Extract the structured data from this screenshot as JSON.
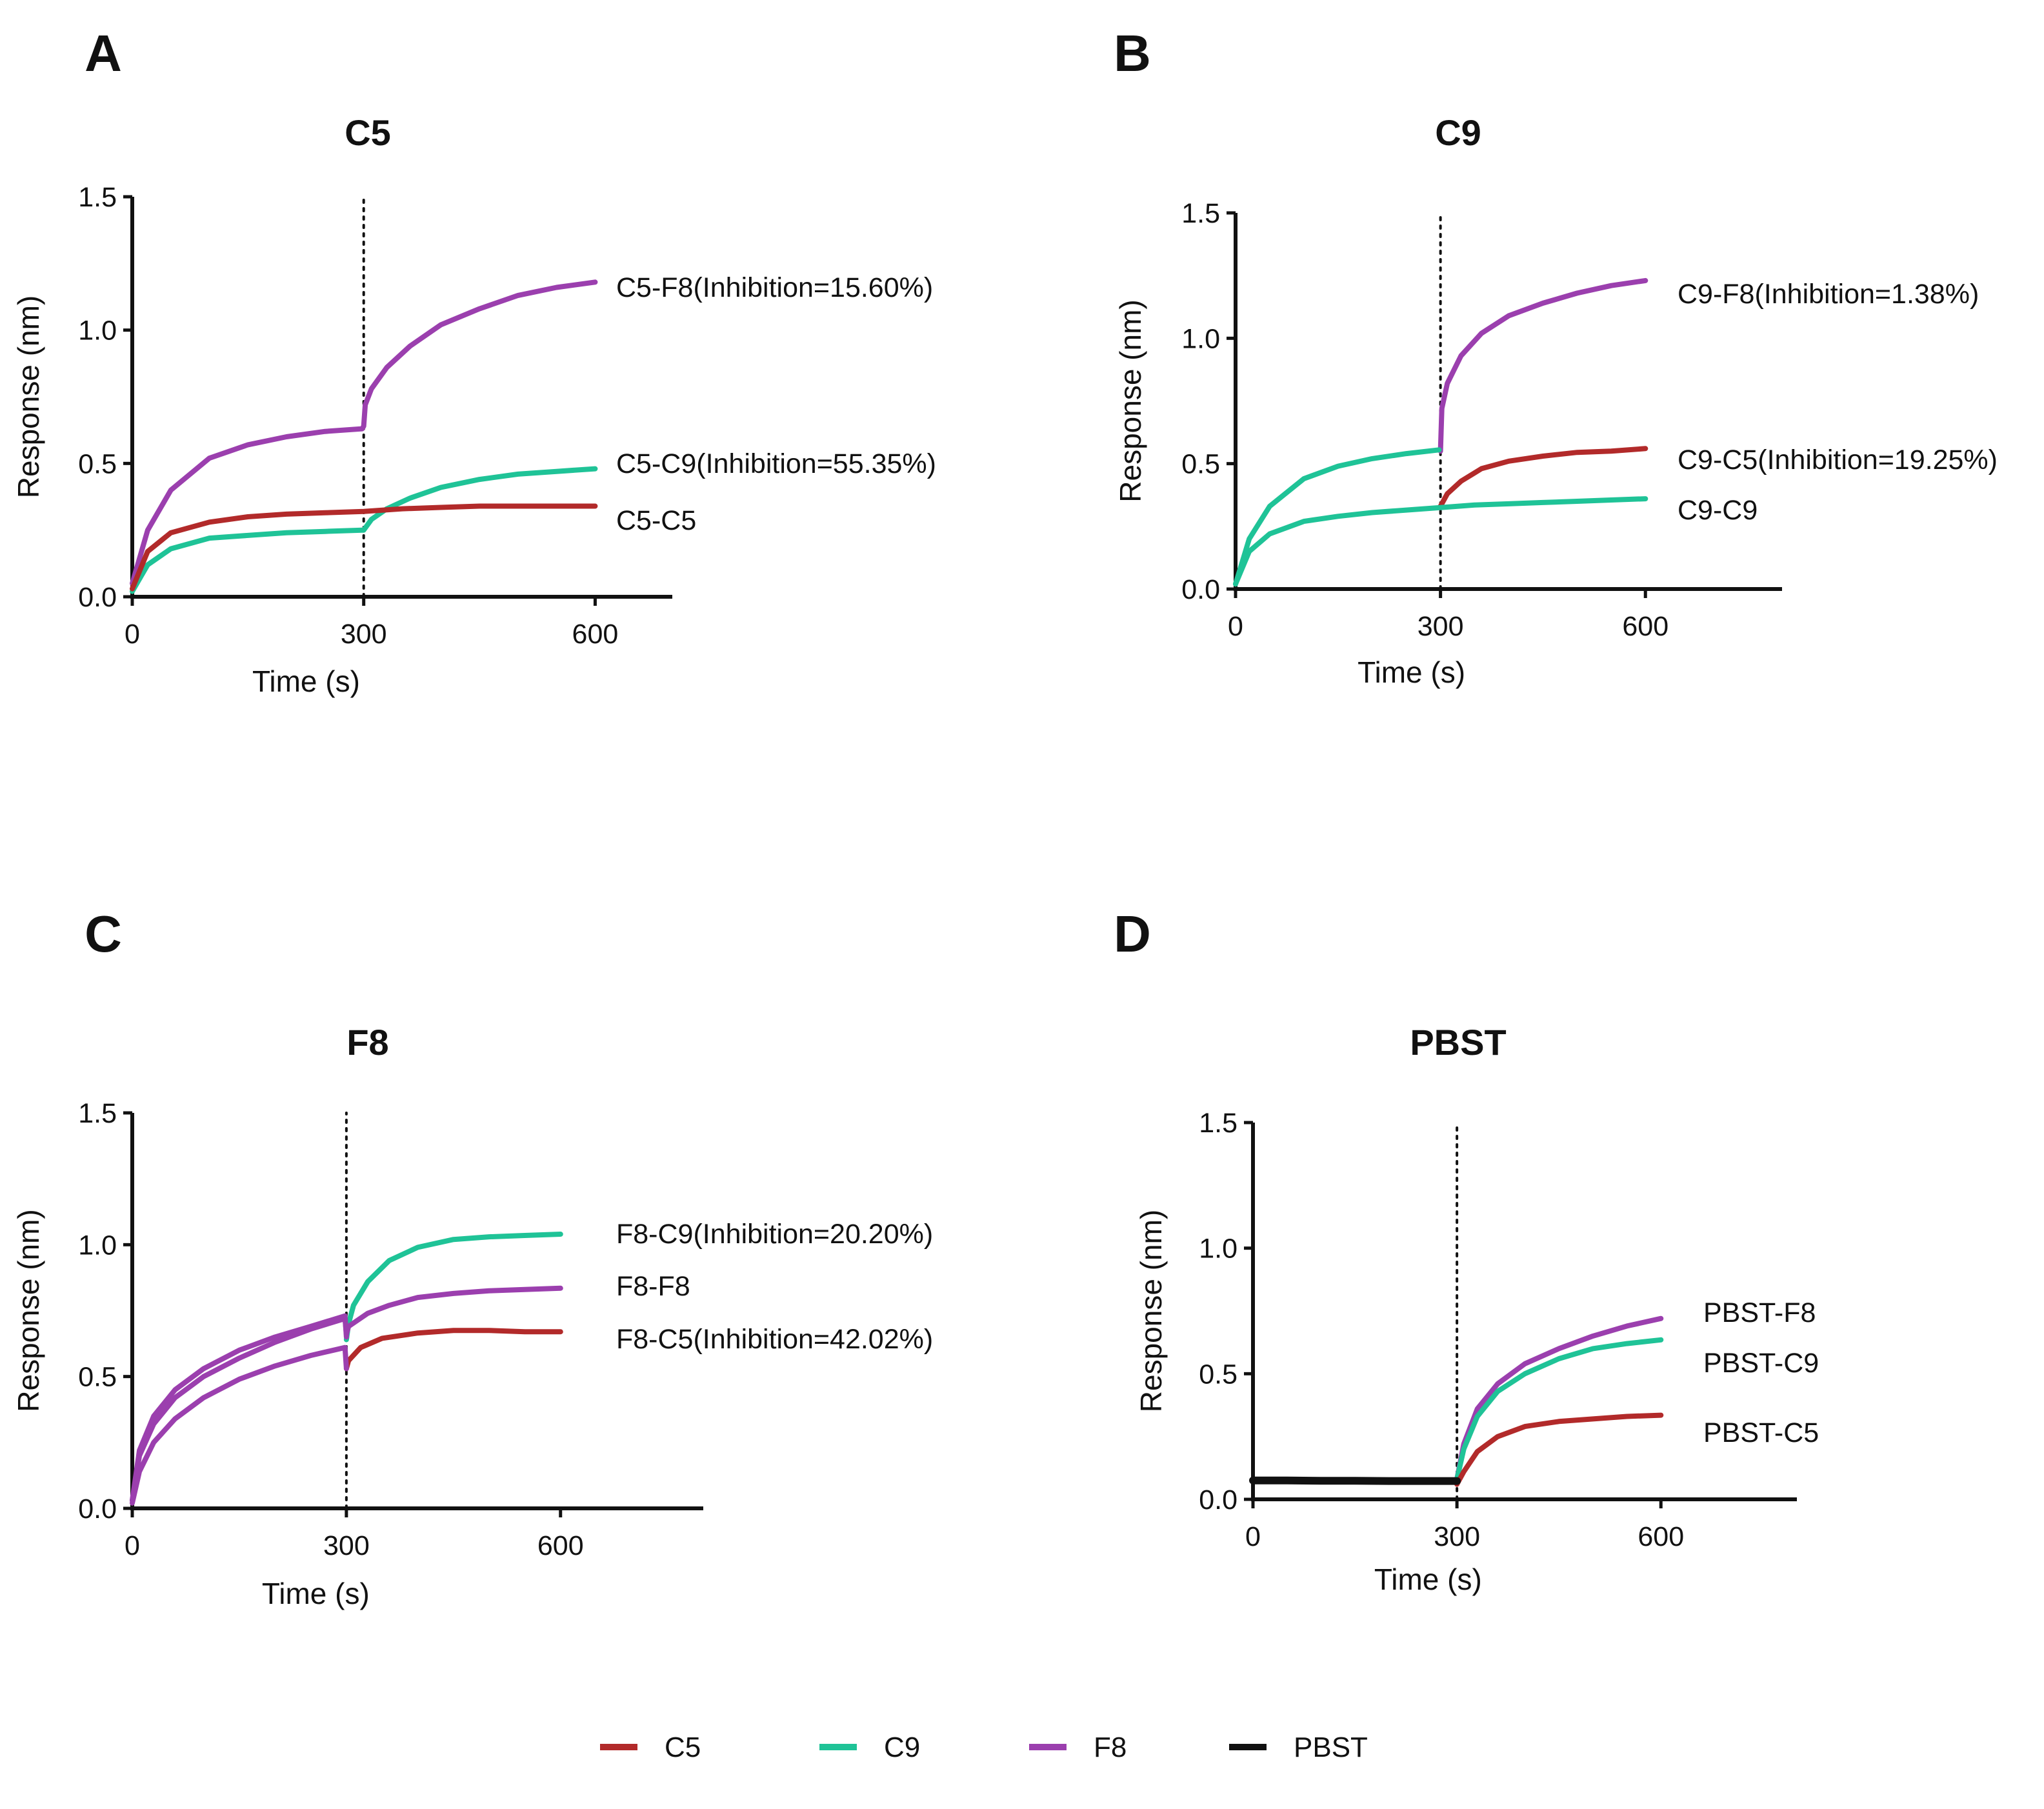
{
  "colors": {
    "C5": "#b22a2a",
    "C9": "#1fc397",
    "F8": "#9b3fae",
    "PBST": "#111111"
  },
  "legend": [
    {
      "key": "C5",
      "label": "C5"
    },
    {
      "key": "C9",
      "label": "C9"
    },
    {
      "key": "F8",
      "label": "F8"
    },
    {
      "key": "PBST",
      "label": "PBST"
    }
  ],
  "chart_data": [
    {
      "type": "line",
      "panel": "A",
      "title": "C5",
      "xlabel": "Time (s)",
      "ylabel": "Response (nm)",
      "xlim": [
        0,
        700
      ],
      "ylim": [
        0,
        1.5
      ],
      "xticks": [
        "0",
        "300",
        "600"
      ],
      "yticks": [
        "0.0",
        "0.5",
        "1.0",
        "1.5"
      ],
      "divider_x": 300,
      "series": [
        {
          "name": "C5-F8(Inhibition=15.60%)",
          "label": "C5-F8(Inhibition=15.60%)",
          "color_key": "F8",
          "x": [
            0,
            20,
            50,
            100,
            150,
            200,
            250,
            298,
            300,
            302,
            310,
            330,
            360,
            400,
            450,
            500,
            550,
            600
          ],
          "y": [
            0.05,
            0.25,
            0.4,
            0.52,
            0.57,
            0.6,
            0.62,
            0.63,
            0.64,
            0.72,
            0.78,
            0.86,
            0.94,
            1.02,
            1.08,
            1.13,
            1.16,
            1.18
          ]
        },
        {
          "name": "C5-C9(Inhibition=55.35%)",
          "label": "C5-C9(Inhibition=55.35%)",
          "color_key": "C9",
          "x": [
            0,
            20,
            50,
            100,
            150,
            200,
            250,
            298,
            300,
            310,
            330,
            360,
            400,
            450,
            500,
            550,
            600
          ],
          "y": [
            0.02,
            0.12,
            0.18,
            0.22,
            0.23,
            0.24,
            0.245,
            0.25,
            0.25,
            0.29,
            0.33,
            0.37,
            0.41,
            0.44,
            0.46,
            0.47,
            0.48
          ]
        },
        {
          "name": "C5-C5",
          "label": "C5-C5",
          "color_key": "C5",
          "x": [
            0,
            20,
            50,
            100,
            150,
            200,
            250,
            300,
            350,
            400,
            450,
            500,
            550,
            600
          ],
          "y": [
            0.03,
            0.17,
            0.24,
            0.28,
            0.3,
            0.31,
            0.315,
            0.32,
            0.33,
            0.335,
            0.34,
            0.34,
            0.34,
            0.34
          ]
        }
      ]
    },
    {
      "type": "line",
      "panel": "B",
      "title": "C9",
      "xlabel": "Time (s)",
      "ylabel": "Response (nm)",
      "xlim": [
        0,
        800
      ],
      "ylim": [
        0,
        1.5
      ],
      "xticks": [
        "0",
        "300",
        "600"
      ],
      "yticks": [
        "0.0",
        "0.5",
        "1.0",
        "1.5"
      ],
      "divider_x": 300,
      "series": [
        {
          "name": "C9-F8(Inhibition=1.38%)",
          "label": "C9-F8(Inhibition=1.38%)",
          "color_key": "F8",
          "x": [
            300,
            302,
            310,
            330,
            360,
            400,
            450,
            500,
            550,
            600
          ],
          "y": [
            0.55,
            0.72,
            0.82,
            0.93,
            1.02,
            1.09,
            1.14,
            1.18,
            1.21,
            1.23
          ]
        },
        {
          "name": "C9-C5(Inhibition=19.25%)",
          "label": "C9-C5(Inhibition=19.25%)",
          "color_key": "C5",
          "x": [
            300,
            310,
            330,
            360,
            400,
            450,
            500,
            550,
            600
          ],
          "y": [
            0.33,
            0.38,
            0.43,
            0.48,
            0.51,
            0.53,
            0.545,
            0.55,
            0.56
          ]
        },
        {
          "name": "C9-C9",
          "label": "C9-C9",
          "color_key": "C9",
          "x": [
            0,
            20,
            50,
            100,
            150,
            200,
            250,
            300,
            350,
            400,
            450,
            500,
            550,
            600
          ],
          "y": [
            0.02,
            0.15,
            0.22,
            0.27,
            0.29,
            0.305,
            0.315,
            0.325,
            0.335,
            0.34,
            0.345,
            0.35,
            0.355,
            0.36
          ]
        },
        {
          "name": "C9 loading (high)",
          "color_key": "C9",
          "x": [
            0,
            20,
            50,
            100,
            150,
            200,
            250,
            298
          ],
          "y": [
            0.02,
            0.2,
            0.33,
            0.44,
            0.49,
            0.52,
            0.54,
            0.555
          ]
        }
      ]
    },
    {
      "type": "line",
      "panel": "C",
      "title": "F8",
      "xlabel": "Time (s)",
      "ylabel": "Response (nm)",
      "xlim": [
        0,
        800
      ],
      "ylim": [
        0,
        1.5
      ],
      "xticks": [
        "0",
        "300",
        "600"
      ],
      "yticks": [
        "0.0",
        "0.5",
        "1.0",
        "1.5"
      ],
      "divider_x": 300,
      "series": [
        {
          "name": "F8-C9(Inhibition=20.20%)",
          "label": "F8-C9(Inhibition=20.20%)",
          "color_key": "C9",
          "x": [
            300,
            303,
            310,
            330,
            360,
            400,
            450,
            500,
            550,
            600
          ],
          "y": [
            0.64,
            0.7,
            0.77,
            0.86,
            0.94,
            0.99,
            1.02,
            1.03,
            1.035,
            1.04
          ]
        },
        {
          "name": "F8-F8",
          "label": "F8-F8",
          "color_key": "F8",
          "x": [
            0,
            10,
            30,
            60,
            100,
            150,
            200,
            250,
            298,
            300,
            303,
            330,
            360,
            400,
            450,
            500,
            550,
            600
          ],
          "y": [
            0.03,
            0.2,
            0.32,
            0.42,
            0.5,
            0.57,
            0.63,
            0.68,
            0.72,
            0.66,
            0.69,
            0.74,
            0.77,
            0.8,
            0.815,
            0.825,
            0.83,
            0.835
          ]
        },
        {
          "name": "F8-C5(Inhibition=42.02%)",
          "label": "F8-C5(Inhibition=42.02%)",
          "color_key": "C5",
          "x": [
            300,
            303,
            320,
            350,
            400,
            450,
            500,
            550,
            600
          ],
          "y": [
            0.53,
            0.56,
            0.61,
            0.645,
            0.665,
            0.675,
            0.675,
            0.67,
            0.67
          ]
        },
        {
          "name": "F8 loading (upper)",
          "color_key": "F8",
          "x": [
            0,
            10,
            30,
            60,
            100,
            150,
            200,
            250,
            298,
            300
          ],
          "y": [
            0.03,
            0.22,
            0.35,
            0.45,
            0.53,
            0.6,
            0.65,
            0.69,
            0.73,
            0.65
          ]
        },
        {
          "name": "F8 loading (lower)",
          "color_key": "F8",
          "x": [
            0,
            10,
            30,
            60,
            100,
            150,
            200,
            250,
            298,
            300
          ],
          "y": [
            0.02,
            0.14,
            0.25,
            0.34,
            0.42,
            0.49,
            0.54,
            0.58,
            0.61,
            0.53
          ]
        }
      ]
    },
    {
      "type": "line",
      "panel": "D",
      "title": "PBST",
      "xlabel": "Time (s)",
      "ylabel": "Response (nm)",
      "xlim": [
        0,
        800
      ],
      "ylim": [
        0,
        1.5
      ],
      "xticks": [
        "0",
        "300",
        "600"
      ],
      "yticks": [
        "0.0",
        "0.5",
        "1.0",
        "1.5"
      ],
      "divider_x": 300,
      "series": [
        {
          "name": "PBST-F8",
          "label": "PBST-F8",
          "color_key": "F8",
          "x": [
            300,
            310,
            330,
            360,
            400,
            450,
            500,
            550,
            600
          ],
          "y": [
            0.08,
            0.22,
            0.36,
            0.46,
            0.54,
            0.6,
            0.65,
            0.69,
            0.72
          ]
        },
        {
          "name": "PBST-C9",
          "label": "PBST-C9",
          "color_key": "C9",
          "x": [
            300,
            310,
            330,
            360,
            400,
            450,
            500,
            550,
            600
          ],
          "y": [
            0.08,
            0.2,
            0.33,
            0.43,
            0.5,
            0.56,
            0.6,
            0.62,
            0.635
          ]
        },
        {
          "name": "PBST-C5",
          "label": "PBST-C5",
          "color_key": "C5",
          "x": [
            300,
            310,
            330,
            360,
            400,
            450,
            500,
            550,
            600
          ],
          "y": [
            0.06,
            0.11,
            0.19,
            0.25,
            0.29,
            0.31,
            0.32,
            0.33,
            0.335
          ]
        },
        {
          "name": "PBST baseline",
          "color_key": "PBST",
          "x": [
            0,
            50,
            100,
            150,
            200,
            250,
            300
          ],
          "y": [
            0.075,
            0.075,
            0.074,
            0.074,
            0.073,
            0.073,
            0.073
          ]
        }
      ]
    }
  ]
}
